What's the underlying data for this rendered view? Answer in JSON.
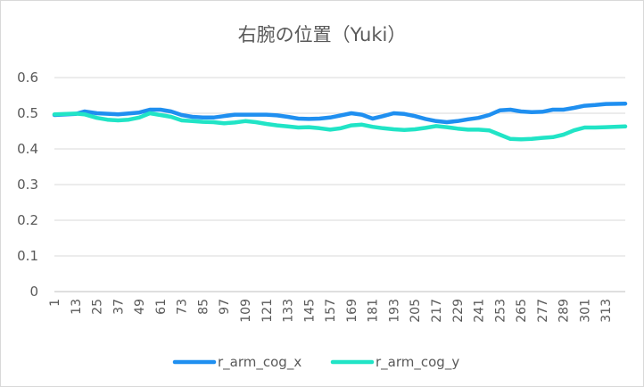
{
  "chart_data": {
    "type": "line",
    "title": "右腕の位置（Yuki）",
    "ylim": [
      0,
      0.6
    ],
    "yticks": [
      "0",
      "0.1",
      "0.2",
      "0.3",
      "0.4",
      "0.5",
      "0.6"
    ],
    "xticks": [
      "1",
      "13",
      "25",
      "37",
      "49",
      "61",
      "73",
      "85",
      "97",
      "109",
      "121",
      "133",
      "145",
      "157",
      "169",
      "181",
      "193",
      "205",
      "217",
      "229",
      "241",
      "253",
      "265",
      "277",
      "289",
      "301",
      "313"
    ],
    "grid": true,
    "legend": "bottom",
    "series": [
      {
        "name": "r_arm_cog_x",
        "color": "#1f8ff0",
        "x": [
          1,
          13,
          18,
          25,
          37,
          49,
          55,
          61,
          67,
          73,
          79,
          85,
          91,
          97,
          103,
          109,
          115,
          121,
          127,
          133,
          139,
          145,
          151,
          157,
          163,
          169,
          175,
          181,
          187,
          193,
          199,
          205,
          211,
          217,
          223,
          229,
          235,
          241,
          247,
          253,
          259,
          265,
          271,
          277,
          283,
          289,
          295,
          301,
          307,
          313,
          324
        ],
        "values": [
          0.495,
          0.498,
          0.505,
          0.5,
          0.497,
          0.502,
          0.51,
          0.51,
          0.505,
          0.495,
          0.49,
          0.488,
          0.488,
          0.492,
          0.496,
          0.496,
          0.496,
          0.496,
          0.494,
          0.49,
          0.485,
          0.484,
          0.485,
          0.488,
          0.494,
          0.5,
          0.496,
          0.485,
          0.492,
          0.5,
          0.498,
          0.492,
          0.484,
          0.478,
          0.475,
          0.478,
          0.483,
          0.487,
          0.495,
          0.508,
          0.51,
          0.505,
          0.503,
          0.504,
          0.51,
          0.51,
          0.515,
          0.521,
          0.523,
          0.526,
          0.527
        ]
      },
      {
        "name": "r_arm_cog_y",
        "color": "#21e4c6",
        "x": [
          1,
          13,
          18,
          25,
          31,
          37,
          43,
          49,
          55,
          61,
          67,
          73,
          79,
          85,
          91,
          97,
          103,
          109,
          115,
          121,
          127,
          133,
          139,
          145,
          151,
          157,
          163,
          169,
          175,
          181,
          187,
          193,
          199,
          205,
          211,
          217,
          223,
          229,
          235,
          241,
          247,
          253,
          259,
          265,
          271,
          277,
          283,
          289,
          295,
          301,
          307,
          313,
          324
        ],
        "values": [
          0.497,
          0.499,
          0.497,
          0.487,
          0.482,
          0.48,
          0.482,
          0.488,
          0.5,
          0.495,
          0.49,
          0.48,
          0.478,
          0.476,
          0.475,
          0.472,
          0.474,
          0.478,
          0.475,
          0.47,
          0.466,
          0.463,
          0.46,
          0.461,
          0.458,
          0.454,
          0.458,
          0.466,
          0.468,
          0.462,
          0.458,
          0.455,
          0.453,
          0.455,
          0.459,
          0.464,
          0.461,
          0.457,
          0.454,
          0.454,
          0.452,
          0.44,
          0.428,
          0.427,
          0.428,
          0.431,
          0.433,
          0.44,
          0.452,
          0.46,
          0.46,
          0.461,
          0.463
        ]
      }
    ]
  }
}
